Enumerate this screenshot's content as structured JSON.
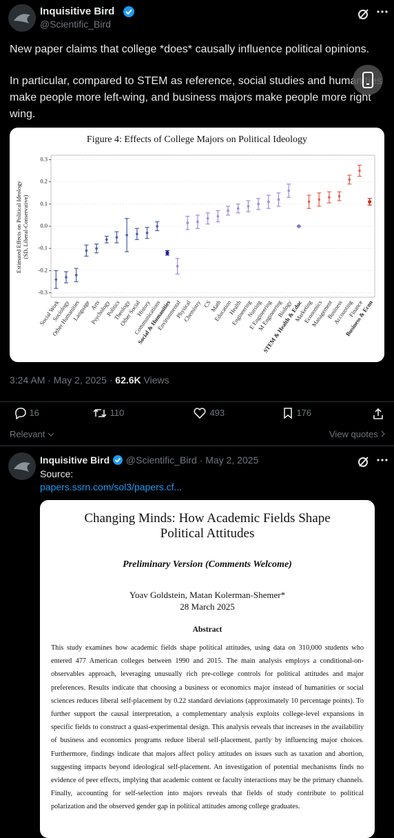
{
  "tweet": {
    "author": "Inquisitive Bird",
    "handle": "@Scientific_Bird",
    "text": [
      "New paper claims that college *does* causally influence political opinions.",
      "In particular, compared to STEM as reference, social studies and humanities make people more left-wing, and business majors make people more right wing."
    ],
    "time": "3:24 AM · May 2, 2025 ·",
    "views": "62.6K",
    "views_label": "Views",
    "replies": 16,
    "retweets": 110,
    "likes": 493,
    "bookmarks": 176
  },
  "chart": {
    "title": "Figure 4: Effects of College Majors on Political Ideology",
    "y_label": [
      "Estimated Effects on Political Ideology",
      "(SD, Liberal-Conservative)"
    ],
    "categories": [
      "Social Work",
      "Sociology",
      "Other Humanities",
      "Language",
      "Arts",
      "Psychology",
      "Politics",
      "Theology",
      "Other Social",
      "History",
      "Communications",
      "Social & Humanities",
      "Environmental",
      "Physical",
      "Chemistry",
      "CS",
      "Math",
      "Education",
      "Health",
      "Engineering",
      "Nursing",
      "E Engineering",
      "M Engineering",
      "Biology",
      "STEM & Health & Educ",
      "Marketing",
      "Economics",
      "Management",
      "Business",
      "Accounting",
      "Finance",
      "Business & Econ"
    ],
    "values": [
      -0.24,
      -0.23,
      -0.22,
      -0.11,
      -0.1,
      -0.06,
      -0.05,
      -0.04,
      -0.035,
      -0.03,
      0.0,
      -0.12,
      -0.18,
      0.015,
      0.02,
      0.035,
      0.045,
      0.07,
      0.08,
      0.09,
      0.1,
      0.11,
      0.12,
      0.16,
      0.0,
      0.11,
      0.12,
      0.13,
      0.135,
      0.21,
      0.25,
      0.11
    ],
    "errors": [
      0.04,
      0.025,
      0.03,
      0.025,
      0.02,
      0.015,
      0.025,
      0.075,
      0.025,
      0.025,
      0.02,
      0.01,
      0.035,
      0.03,
      0.03,
      0.025,
      0.025,
      0.02,
      0.02,
      0.025,
      0.025,
      0.03,
      0.03,
      0.03,
      0.0,
      0.03,
      0.03,
      0.025,
      0.02,
      0.02,
      0.025,
      0.015
    ],
    "colors": [
      "#4a5ba8",
      "#4a5ba8",
      "#4a5ba8",
      "#4a5ba8",
      "#4a5ba8",
      "#4a5ba8",
      "#4a5ba8",
      "#4a5ba8",
      "#4a5ba8",
      "#4a5ba8",
      "#4a5ba8",
      "#1a1aa0",
      "#a08ad8",
      "#a08ad8",
      "#a08ad8",
      "#a08ad8",
      "#a08ad8",
      "#a08ad8",
      "#a08ad8",
      "#a08ad8",
      "#a08ad8",
      "#a08ad8",
      "#a08ad8",
      "#a08ad8",
      "#8a6fd0",
      "#e06050",
      "#e06050",
      "#e06050",
      "#e06050",
      "#e06050",
      "#e06050",
      "#d03020"
    ],
    "bold": [
      false,
      false,
      false,
      false,
      false,
      false,
      false,
      false,
      false,
      false,
      false,
      true,
      false,
      false,
      false,
      false,
      false,
      false,
      false,
      false,
      false,
      false,
      false,
      false,
      true,
      false,
      false,
      false,
      false,
      false,
      false,
      true
    ],
    "ylim": [
      -0.32,
      0.32
    ],
    "yticks": [
      -0.3,
      -0.2,
      -0.1,
      {
        "value": 0,
        "label": "0.0"
      },
      0.1,
      0.2,
      0.3
    ]
  },
  "filter": "Relevant",
  "view_quotes": "View quotes",
  "reply": {
    "author": "Inquisitive Bird",
    "handle_date": "@Scientific_Bird · May 2, 2025",
    "text": "Source:",
    "link": "papers.ssrn.com/sol3/papers.cf..."
  },
  "paper": {
    "title": "Changing Minds: How Academic Fields Shape Political Attitudes",
    "version": "Preliminary Version (Comments Welcome)",
    "authors": "Yoav Goldstein, Matan Kolerman-Shemer*",
    "date": "28 March 2025",
    "abstract_heading": "Abstract",
    "abstract": "This study examines how academic fields shape political attitudes, using data on 310,000 students who entered 477 American colleges between 1990 and 2015. The main analysis employs a conditional-on-observables approach, leveraging unusually rich pre-college controls for political attitudes and major preferences. Results indicate that choosing a business or economics major instead of humanities or social sciences reduces liberal self-placement by 0.22 standard deviations (approximately 10 percentage points). To further support the causal interpretation, a complementary analysis exploits college-level expansions in specific fields to construct a quasi-experimental design. This analysis reveals that increases in the availability of business and economics programs reduce liberal self-placement, partly by influencing major choices. Furthermore, findings indicate that majors affect policy attitudes on issues such as taxation and abortion, suggesting impacts beyond ideological self-placement. An investigation of potential mechanisms finds no evidence of peer effects, implying that academic content or faculty interactions may be the primary channels. Finally, accounting for self-selection into majors reveals that fields of study contribute to political polarization and the observed gender gap in political attitudes among college graduates."
  }
}
